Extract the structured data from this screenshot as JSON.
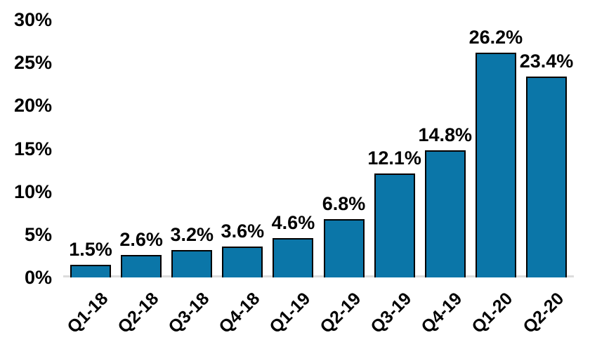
{
  "chart_data": {
    "type": "bar",
    "title": "",
    "xlabel": "",
    "ylabel": "",
    "categories": [
      "Q1-18",
      "Q2-18",
      "Q3-18",
      "Q4-18",
      "Q1-19",
      "Q2-19",
      "Q3-19",
      "Q4-19",
      "Q1-20",
      "Q2-20"
    ],
    "values": [
      1.5,
      2.6,
      3.2,
      3.6,
      4.6,
      6.8,
      12.1,
      14.8,
      26.2,
      23.4
    ],
    "data_labels": [
      "1.5%",
      "2.6%",
      "3.2%",
      "3.6%",
      "4.6%",
      "6.8%",
      "12.1%",
      "14.8%",
      "26.2%",
      "23.4%"
    ],
    "ylim": [
      0,
      30
    ],
    "yticks": [
      {
        "value": 0,
        "label": "0%"
      },
      {
        "value": 5,
        "label": "5%"
      },
      {
        "value": 10,
        "label": "10%"
      },
      {
        "value": 15,
        "label": "15%"
      },
      {
        "value": 20,
        "label": "20%"
      },
      {
        "value": 25,
        "label": "25%"
      },
      {
        "value": 30,
        "label": "30%"
      }
    ],
    "grid": false,
    "legend": "none",
    "x_tick_rotation_deg": 45,
    "colors": {
      "bar_fill": "#0B76A8",
      "bar_border": "#000000",
      "axis_line": "#DCDCDC",
      "text": "#000000",
      "background": "#FFFFFF"
    }
  }
}
